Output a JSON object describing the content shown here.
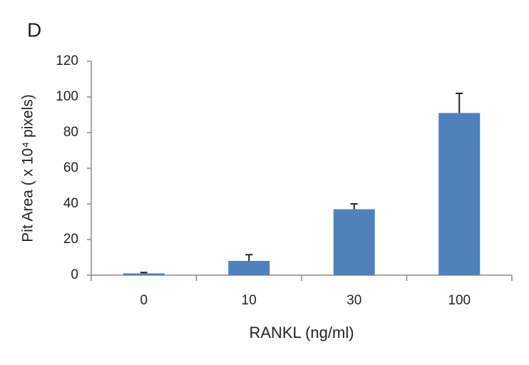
{
  "chart_data": {
    "type": "bar",
    "panel_label": "D",
    "y_label": "Pit Area ( x 10⁴ pixels)",
    "x_label": "RANKL (ng/ml)",
    "categories": [
      "0",
      "10",
      "30",
      "100"
    ],
    "values": [
      1,
      8,
      37,
      91
    ],
    "errors": [
      0.5,
      3.5,
      3,
      11
    ],
    "color": "#4f81bd",
    "ylim": [
      0,
      120
    ],
    "yticks": [
      0,
      20,
      40,
      60,
      80,
      100,
      120
    ]
  }
}
